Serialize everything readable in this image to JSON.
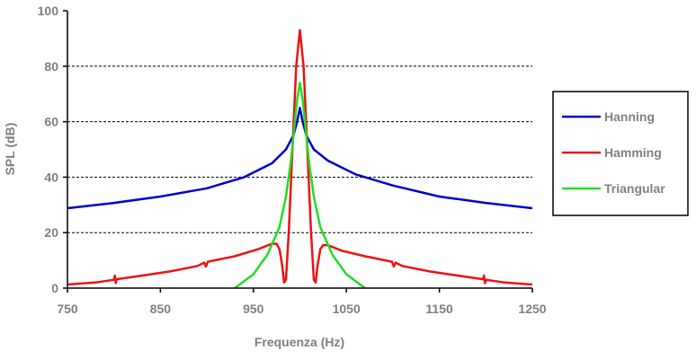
{
  "chart_data": {
    "type": "line",
    "title": "",
    "xlabel": "Frequenza (Hz)",
    "ylabel": "SPL (dB)",
    "xlim": [
      750,
      1250
    ],
    "ylim": [
      0,
      100
    ],
    "x_ticks": [
      "750",
      "850",
      "950",
      "1050",
      "1150",
      "1250"
    ],
    "y_ticks": [
      "0",
      "20",
      "40",
      "60",
      "80",
      "100"
    ],
    "grid": "horizontal dashed",
    "legend_position": "right",
    "series": [
      {
        "name": "Hanning",
        "color": "#0000cc",
        "points": [
          [
            750,
            28.8
          ],
          [
            800,
            30.7
          ],
          [
            850,
            33
          ],
          [
            900,
            36
          ],
          [
            940,
            40
          ],
          [
            970,
            45
          ],
          [
            985,
            50
          ],
          [
            993,
            55
          ],
          [
            997,
            60
          ],
          [
            1000,
            65
          ],
          [
            1003,
            60
          ],
          [
            1007,
            55
          ],
          [
            1015,
            50
          ],
          [
            1030,
            46
          ],
          [
            1060,
            41
          ],
          [
            1100,
            37
          ],
          [
            1150,
            33
          ],
          [
            1200,
            30.7
          ],
          [
            1250,
            28.8
          ]
        ]
      },
      {
        "name": "Hamming",
        "color": "#ee1111",
        "points": [
          [
            750,
            1.3
          ],
          [
            780,
            2
          ],
          [
            800,
            3
          ],
          [
            801,
            4.5
          ],
          [
            802,
            1.8
          ],
          [
            803,
            3.2
          ],
          [
            830,
            4.5
          ],
          [
            860,
            6
          ],
          [
            890,
            8
          ],
          [
            897,
            9.2
          ],
          [
            899,
            7.8
          ],
          [
            901,
            9.5
          ],
          [
            930,
            11.5
          ],
          [
            955,
            14
          ],
          [
            970,
            16
          ],
          [
            975,
            16
          ],
          [
            978,
            14
          ],
          [
            981,
            8
          ],
          [
            983,
            2
          ],
          [
            985,
            3
          ],
          [
            988,
            20
          ],
          [
            992,
            50
          ],
          [
            996,
            80
          ],
          [
            1000,
            93
          ],
          [
            1004,
            80
          ],
          [
            1008,
            50
          ],
          [
            1012,
            20
          ],
          [
            1015,
            3
          ],
          [
            1017,
            2
          ],
          [
            1019,
            8
          ],
          [
            1022,
            14
          ],
          [
            1025,
            15.5
          ],
          [
            1030,
            15.5
          ],
          [
            1045,
            13.5
          ],
          [
            1070,
            11.5
          ],
          [
            1099,
            9.5
          ],
          [
            1101,
            7.8
          ],
          [
            1103,
            9.2
          ],
          [
            1110,
            8
          ],
          [
            1140,
            6
          ],
          [
            1170,
            4.5
          ],
          [
            1197,
            3.2
          ],
          [
            1198,
            4.5
          ],
          [
            1199,
            1.8
          ],
          [
            1200,
            3
          ],
          [
            1220,
            2
          ],
          [
            1250,
            1.3
          ]
        ]
      },
      {
        "name": "Triangular",
        "color": "#22dd22",
        "points": [
          [
            930,
            0
          ],
          [
            950,
            5
          ],
          [
            965,
            12
          ],
          [
            978,
            22
          ],
          [
            985,
            33
          ],
          [
            990,
            45
          ],
          [
            994,
            58
          ],
          [
            997,
            68
          ],
          [
            1000,
            74
          ],
          [
            1003,
            68
          ],
          [
            1006,
            58
          ],
          [
            1010,
            45
          ],
          [
            1015,
            33
          ],
          [
            1022,
            22
          ],
          [
            1035,
            12
          ],
          [
            1050,
            5
          ],
          [
            1070,
            0
          ]
        ]
      }
    ]
  }
}
